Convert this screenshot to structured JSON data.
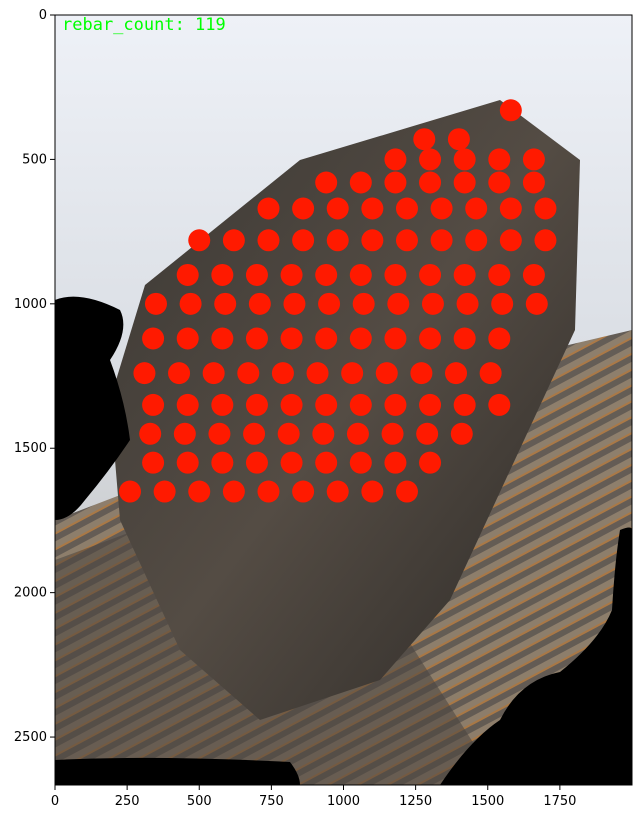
{
  "overlay": {
    "label": "rebar_count: 119",
    "color": "#00ff00"
  },
  "markers": {
    "color": "#ff1a00",
    "count": 119
  },
  "axes": {
    "x_ticks": [
      "0",
      "250",
      "500",
      "750",
      "1000",
      "1250",
      "1500",
      "1750"
    ],
    "y_ticks": [
      "0",
      "500",
      "1000",
      "1500",
      "2000",
      "2500"
    ],
    "x_range": [
      0,
      2000
    ],
    "y_range": [
      0,
      2666
    ]
  },
  "image": {
    "sky_top": "#e8edf5",
    "sky_bottom": "#c9ccd0",
    "steel_dark": "#2b2a28",
    "steel_mid": "#6b625a",
    "rust": "#a8743f",
    "mask": "#000000"
  }
}
